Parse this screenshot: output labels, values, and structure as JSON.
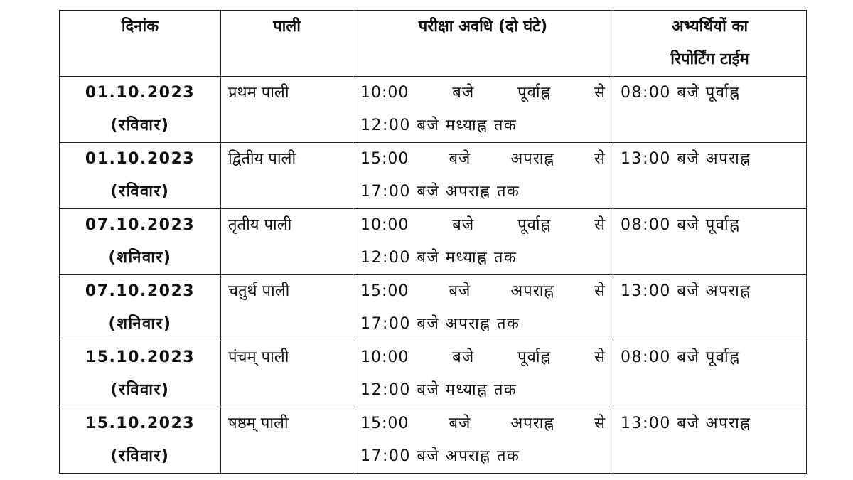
{
  "table": {
    "header": [
      [
        "दिनांक"
      ],
      [
        "पाली"
      ],
      [
        "परीक्षा अवधि (दो घंटे)"
      ],
      [
        "अभ्यर्थियों का",
        "रिपोर्टिंग टाईम"
      ]
    ],
    "rows": [
      {
        "date": [
          "01.10.2023",
          "(रविवार)"
        ],
        "shift": "प्रथम पाली",
        "time": [
          "10:00 बजे पूर्वाह्न से",
          "12:00 बजे मध्याह्न तक"
        ],
        "reporting": "08:00 बजे पूर्वाह्न"
      },
      {
        "date": [
          "01.10.2023",
          "(रविवार)"
        ],
        "shift": "द्वितीय पाली",
        "time": [
          "15:00 बजे अपराह्न से",
          "17:00 बजे अपराह्न तक"
        ],
        "reporting": "13:00 बजे अपराह्न"
      },
      {
        "date": [
          "07.10.2023",
          "(शनिवार)"
        ],
        "shift": "तृतीय पाली",
        "time": [
          "10:00 बजे पूर्वाह्न से",
          "12:00 बजे मध्याह्न तक"
        ],
        "reporting": "08:00 बजे पूर्वाह्न"
      },
      {
        "date": [
          "07.10.2023",
          "(शनिवार)"
        ],
        "shift": "चतुर्थ पाली",
        "time": [
          "15:00 बजे अपराह्न से",
          "17:00 बजे अपराह्न तक"
        ],
        "reporting": "13:00 बजे अपराह्न"
      },
      {
        "date": [
          "15.10.2023",
          "(रविवार)"
        ],
        "shift": "पंचम् पाली",
        "time": [
          "10:00 बजे पूर्वाह्न से",
          "12:00 बजे मध्याह्न तक"
        ],
        "reporting": "08:00 बजे पूर्वाह्न"
      },
      {
        "date": [
          "15.10.2023",
          "(रविवार)"
        ],
        "shift": "षष्ठम् पाली",
        "time": [
          "15:00 बजे अपराह्न से",
          "17:00 बजे अपराह्न तक"
        ],
        "reporting": "13:00 बजे अपराह्न"
      }
    ]
  }
}
